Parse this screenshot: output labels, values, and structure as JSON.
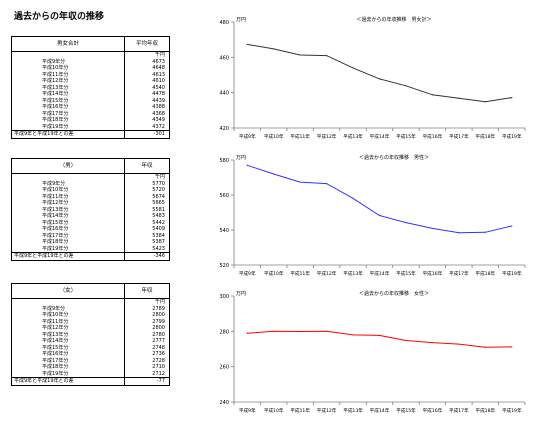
{
  "page": {
    "title": "過去からの年収の推移"
  },
  "tables": [
    {
      "header_left": "男女合計",
      "header_right": "平均年収",
      "unit": "千円",
      "rows": [
        {
          "label": "平成9年分",
          "value": "4673"
        },
        {
          "label": "平成10年分",
          "value": "4648"
        },
        {
          "label": "平成11年分",
          "value": "4613"
        },
        {
          "label": "平成12年分",
          "value": "4610"
        },
        {
          "label": "平成13年分",
          "value": "4540"
        },
        {
          "label": "平成14年分",
          "value": "4478"
        },
        {
          "label": "平成15年分",
          "value": "4439"
        },
        {
          "label": "平成16年分",
          "value": "4388"
        },
        {
          "label": "平成17年分",
          "value": "4368"
        },
        {
          "label": "平成18年分",
          "value": "4349"
        },
        {
          "label": "平成19年分",
          "value": "4372"
        }
      ],
      "diff_label": "平成9年と平成19年との差",
      "diff_value": "-301"
    },
    {
      "header_left": "（男）",
      "header_right": "年収",
      "unit": "千円",
      "rows": [
        {
          "label": "平成9年分",
          "value": "5770"
        },
        {
          "label": "平成10年分",
          "value": "5720"
        },
        {
          "label": "平成11年分",
          "value": "5674"
        },
        {
          "label": "平成12年分",
          "value": "5665"
        },
        {
          "label": "平成13年分",
          "value": "5581"
        },
        {
          "label": "平成14年分",
          "value": "5483"
        },
        {
          "label": "平成15年分",
          "value": "5442"
        },
        {
          "label": "平成16年分",
          "value": "5409"
        },
        {
          "label": "平成17年分",
          "value": "5384"
        },
        {
          "label": "平成18年分",
          "value": "5387"
        },
        {
          "label": "平成19年分",
          "value": "5423"
        }
      ],
      "diff_label": "平成9年と平成19年との差",
      "diff_value": "-346"
    },
    {
      "header_left": "（女）",
      "header_right": "年収",
      "unit": "千円",
      "rows": [
        {
          "label": "平成9年分",
          "value": "2789"
        },
        {
          "label": "平成10年分",
          "value": "2800"
        },
        {
          "label": "平成11年分",
          "value": "2799"
        },
        {
          "label": "平成12年分",
          "value": "2800"
        },
        {
          "label": "平成13年分",
          "value": "2780"
        },
        {
          "label": "平成14年分",
          "value": "2777"
        },
        {
          "label": "平成15年分",
          "value": "2748"
        },
        {
          "label": "平成16年分",
          "value": "2736"
        },
        {
          "label": "平成17年分",
          "value": "2728"
        },
        {
          "label": "平成18年分",
          "value": "2710"
        },
        {
          "label": "平成19年分",
          "value": "2712"
        }
      ],
      "diff_label": "平成9年と平成19年との差",
      "diff_value": "-77"
    }
  ],
  "chart_data": [
    {
      "type": "line",
      "title": "＜過去からの年収推移　男女計＞",
      "ylabel": "万円",
      "categories": [
        "平成9年",
        "平成10年",
        "平成11年",
        "平成12年",
        "平成13年",
        "平成14年",
        "平成15年",
        "平成16年",
        "平成17年",
        "平成18年",
        "平成19年"
      ],
      "series": [
        {
          "values": [
            467.3,
            464.8,
            461.3,
            461.0,
            454.0,
            447.8,
            443.9,
            438.8,
            436.8,
            434.9,
            437.2
          ],
          "color": "#333333"
        }
      ],
      "ylim": [
        420,
        480
      ],
      "yticks": [
        420,
        440,
        460,
        480
      ],
      "grid": false
    },
    {
      "type": "line",
      "title": "＜過去からの年収推移　男性＞",
      "ylabel": "万円",
      "categories": [
        "平成9年",
        "平成10年",
        "平成11年",
        "平成12年",
        "平成13年",
        "平成14年",
        "平成15年",
        "平成16年",
        "平成17年",
        "平成18年",
        "平成19年"
      ],
      "series": [
        {
          "values": [
            577.0,
            572.0,
            567.4,
            566.5,
            558.1,
            548.3,
            544.2,
            540.9,
            538.4,
            538.7,
            542.3
          ],
          "color": "#3333ff"
        }
      ],
      "ylim": [
        520,
        580
      ],
      "yticks": [
        520,
        540,
        560,
        580
      ],
      "grid": false
    },
    {
      "type": "line",
      "title": "＜過去からの年収推移　女性＞",
      "ylabel": "万円",
      "categories": [
        "平成9年",
        "平成10年",
        "平成11年",
        "平成12年",
        "平成13年",
        "平成14年",
        "平成15年",
        "平成16年",
        "平成17年",
        "平成18年",
        "平成19年"
      ],
      "series": [
        {
          "values": [
            278.9,
            280.0,
            279.9,
            280.0,
            278.0,
            277.7,
            274.8,
            273.6,
            272.8,
            271.0,
            271.2
          ],
          "color": "#ff0000"
        }
      ],
      "ylim": [
        240,
        300
      ],
      "yticks": [
        240,
        260,
        280,
        300
      ],
      "grid": false
    }
  ]
}
